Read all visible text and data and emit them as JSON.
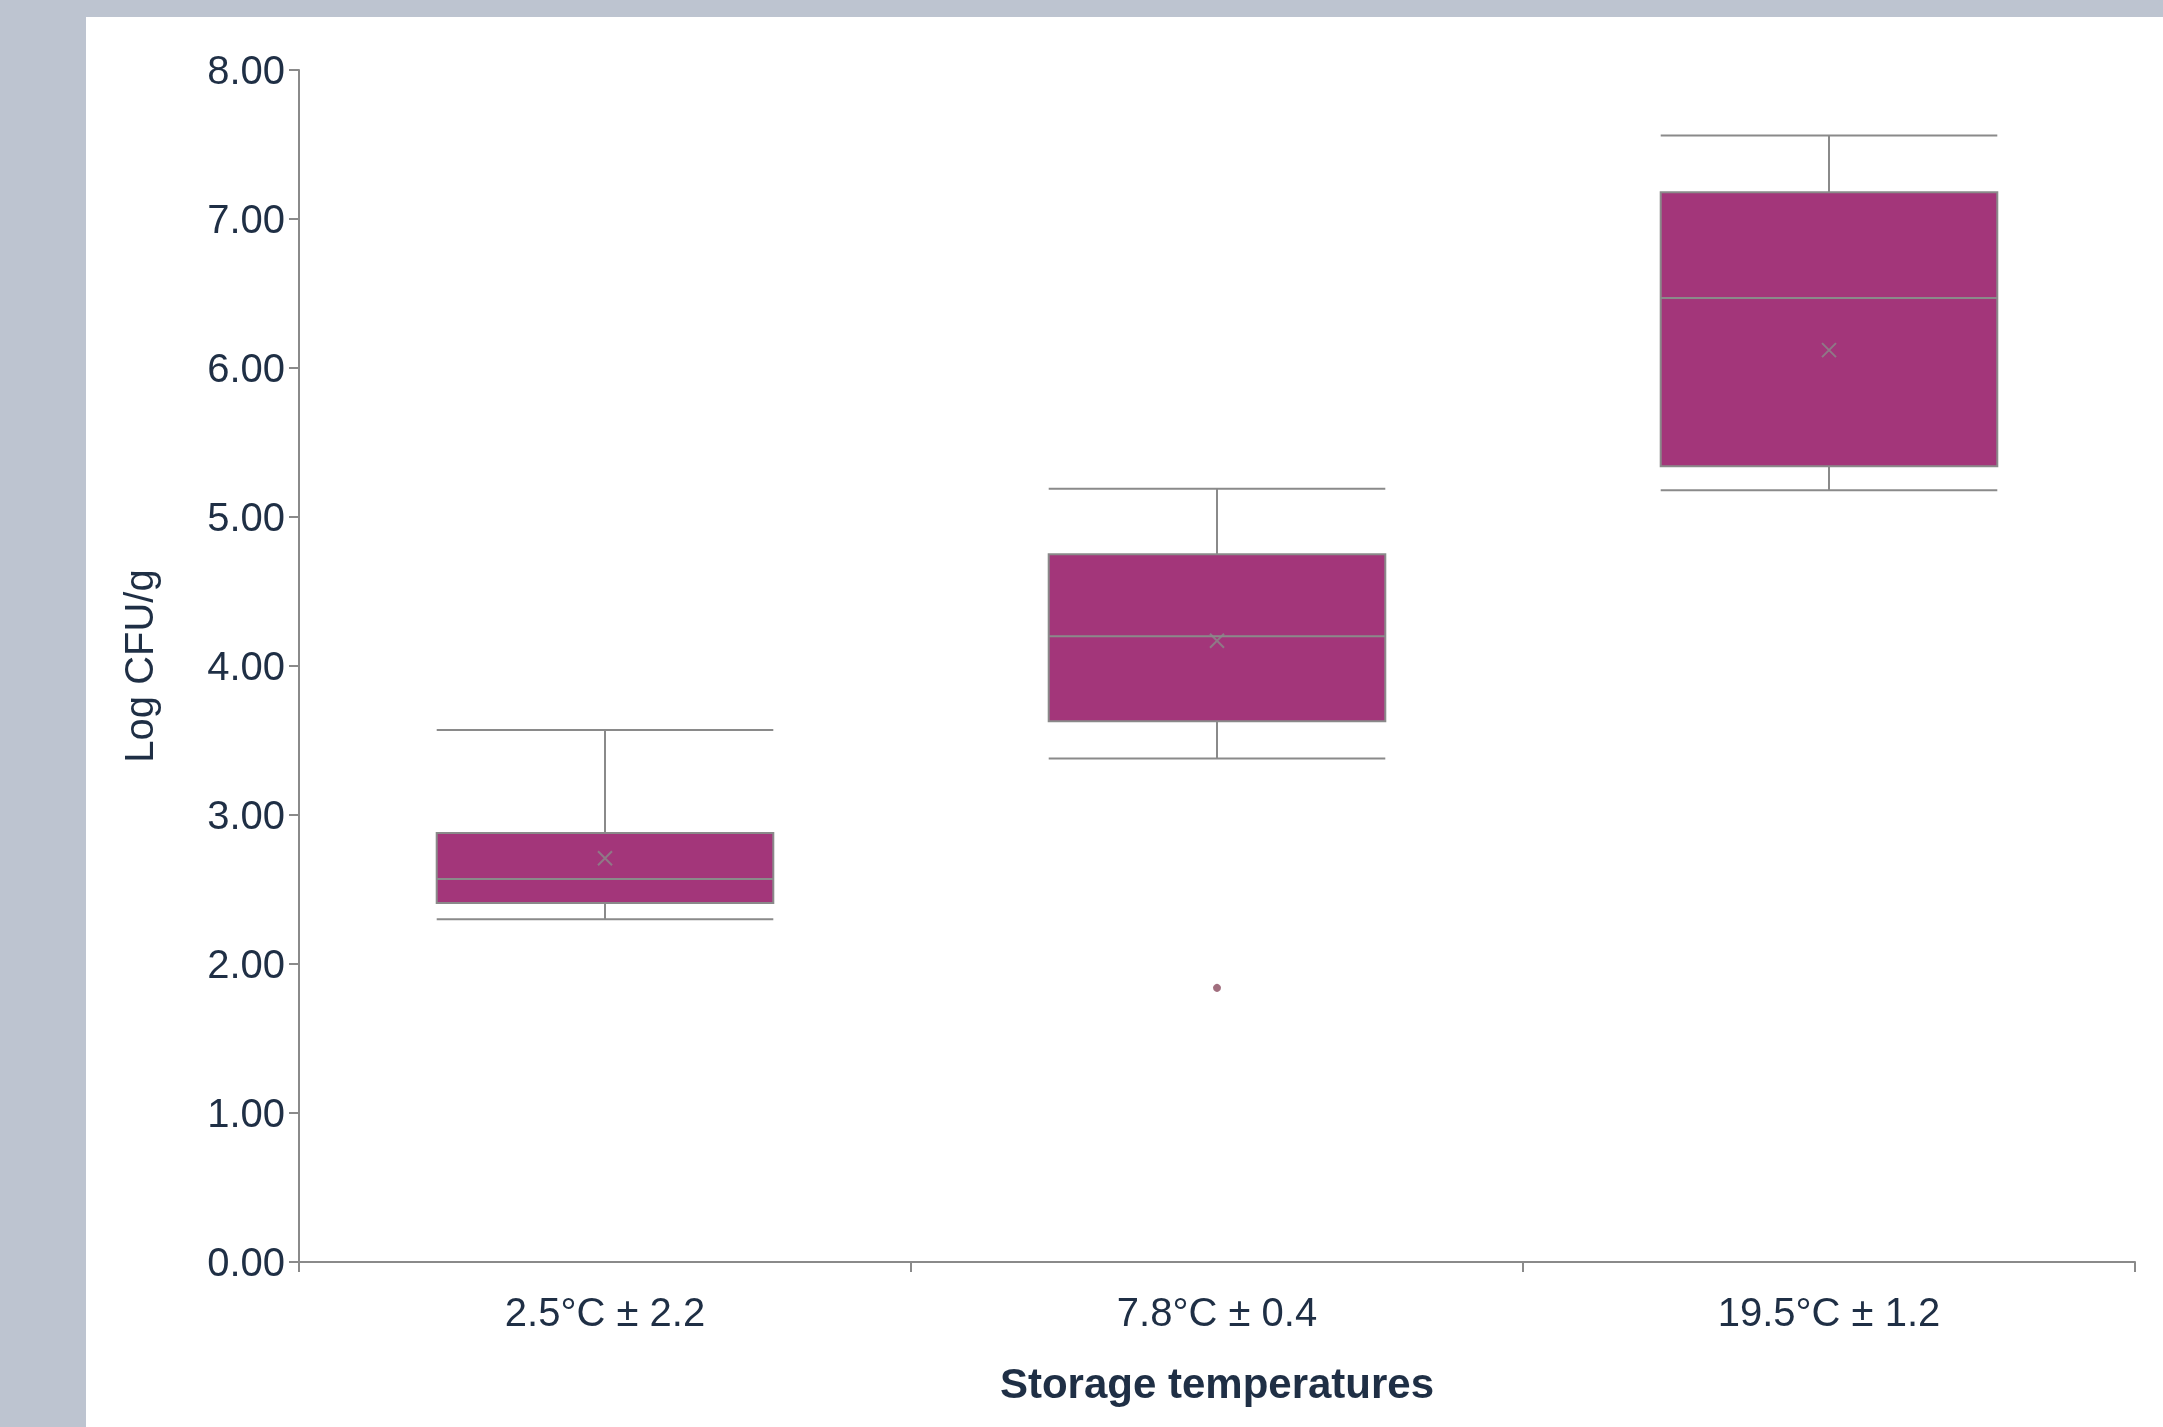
{
  "chart_data": {
    "type": "box",
    "xlabel": "Storage temperatures",
    "ylabel": "Log CFU/g",
    "categories": [
      "2.5°C ± 2.2",
      "7.8°C ± 0.4",
      "19.5°C ± 1.2"
    ],
    "series": [
      {
        "color": "#a3367a",
        "boxes": [
          {
            "low": 2.3,
            "q1": 2.41,
            "median": 2.57,
            "q3": 2.88,
            "high": 3.57,
            "mean": 2.71
          },
          {
            "low": 3.38,
            "q1": 3.63,
            "median": 4.2,
            "q3": 4.75,
            "high": 5.19,
            "mean": 4.17,
            "outliers": [
              1.84
            ]
          },
          {
            "low": 5.18,
            "q1": 5.34,
            "median": 6.47,
            "q3": 7.18,
            "high": 7.56,
            "mean": 6.12
          }
        ]
      }
    ],
    "ylim": [
      0,
      8
    ],
    "yticks": [
      {
        "value": 0,
        "label": "0.00"
      },
      {
        "value": 1,
        "label": "1.00"
      },
      {
        "value": 2,
        "label": "2.00"
      },
      {
        "value": 3,
        "label": "3.00"
      },
      {
        "value": 4,
        "label": "4.00"
      },
      {
        "value": 5,
        "label": "5.00"
      },
      {
        "value": 6,
        "label": "6.00"
      },
      {
        "value": 7,
        "label": "7.00"
      },
      {
        "value": 8,
        "label": "8.00"
      }
    ]
  }
}
